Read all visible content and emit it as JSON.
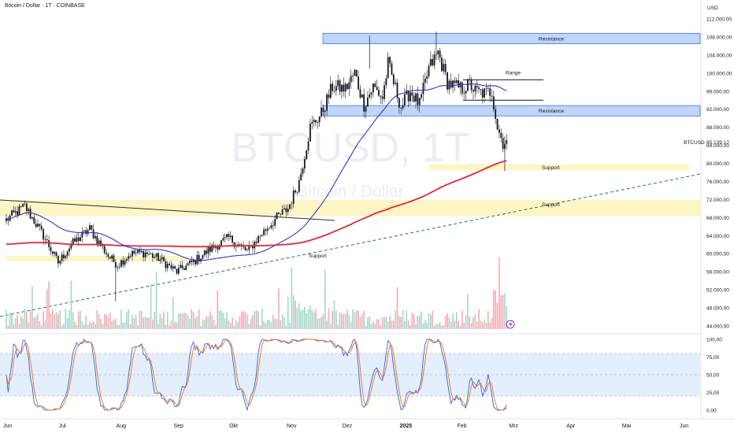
{
  "header": {
    "title": "Bitcoin / Dollar · 1T · COINBASE"
  },
  "currency": "USD",
  "symbol_label": "BTCUSD",
  "last_price": "85.139,12",
  "watermark": {
    "symbol": "BTCUSD, 1T",
    "name": "Bitcoin / Dollar"
  },
  "annotations": {
    "resistance_top": "Resistance",
    "resistance_mid": "Resistance",
    "range": "Range",
    "support_mid": "Support",
    "support_lower": "Support",
    "support_left": "Support"
  },
  "chart_data": {
    "type": "candlestick",
    "price_ticks": [
      "112.000,00",
      "108.000,00",
      "104.000,00",
      "100.000,00",
      "96.000,00",
      "92.000,00",
      "88.000,00",
      "84.000,00",
      "80.000,00",
      "76.000,00",
      "72.000,00",
      "68.000,00",
      "64.000,00",
      "60.000,00",
      "56.000,00",
      "52.000,00",
      "48.000,00",
      "44.000,00"
    ],
    "price_tick_values": [
      112000,
      108000,
      104000,
      100000,
      96000,
      92000,
      88000,
      84000,
      80000,
      76000,
      72000,
      68000,
      64000,
      60000,
      56000,
      52000,
      48000,
      44000
    ],
    "price_range": [
      43000,
      114000
    ],
    "months": [
      "Jun",
      "Jul",
      "Aug",
      "Sep",
      "Okt",
      "Nov",
      "Dez",
      "2025",
      "Feb",
      "Mrz",
      "Apr",
      "Mai",
      "Jun"
    ],
    "month_day_index": [
      0,
      30,
      61,
      92,
      122,
      153,
      183,
      214,
      245,
      273,
      304,
      334,
      365
    ],
    "close_anchors": [
      [
        0,
        67500
      ],
      [
        10,
        70500
      ],
      [
        20,
        64000
      ],
      [
        28,
        58000
      ],
      [
        35,
        62000
      ],
      [
        45,
        65500
      ],
      [
        55,
        59500
      ],
      [
        60,
        57500
      ],
      [
        67,
        60000
      ],
      [
        75,
        60200
      ],
      [
        82,
        59000
      ],
      [
        92,
        56000
      ],
      [
        102,
        58500
      ],
      [
        110,
        61000
      ],
      [
        120,
        63500
      ],
      [
        130,
        60500
      ],
      [
        138,
        64500
      ],
      [
        146,
        68000
      ],
      [
        152,
        70000
      ],
      [
        158,
        76000
      ],
      [
        164,
        88000
      ],
      [
        170,
        91000
      ],
      [
        176,
        97000
      ],
      [
        183,
        96500
      ],
      [
        188,
        100000
      ],
      [
        193,
        93000
      ],
      [
        198,
        97000
      ],
      [
        203,
        94500
      ],
      [
        206,
        102000
      ],
      [
        213,
        92500
      ],
      [
        218,
        96000
      ],
      [
        223,
        93000
      ],
      [
        228,
        101000
      ],
      [
        233,
        104500
      ],
      [
        238,
        98000
      ],
      [
        242,
        97000
      ],
      [
        246,
        96500
      ],
      [
        250,
        97500
      ],
      [
        253,
        96000
      ],
      [
        258,
        95500
      ],
      [
        262,
        96000
      ],
      [
        265,
        88000
      ],
      [
        268,
        84500
      ],
      [
        270,
        85139
      ]
    ],
    "stoch_ticks": [
      "100,00",
      "75,00",
      "50,00",
      "25,00",
      "0,00"
    ],
    "stoch_tick_values": [
      100,
      75,
      50,
      25,
      0
    ],
    "resistance_zones": [
      [
        106500,
        108800
      ],
      [
        90500,
        92800
      ]
    ],
    "support_zones": [
      [
        78500,
        79800
      ],
      [
        68300,
        71900
      ],
      [
        58300,
        59500
      ]
    ],
    "range_lines": [
      98500,
      94000
    ],
    "ma_short_color": "#2f36c9",
    "ma_long_color": "#e0283a",
    "up_color": "#22ab94",
    "down_color": "#f23645"
  }
}
